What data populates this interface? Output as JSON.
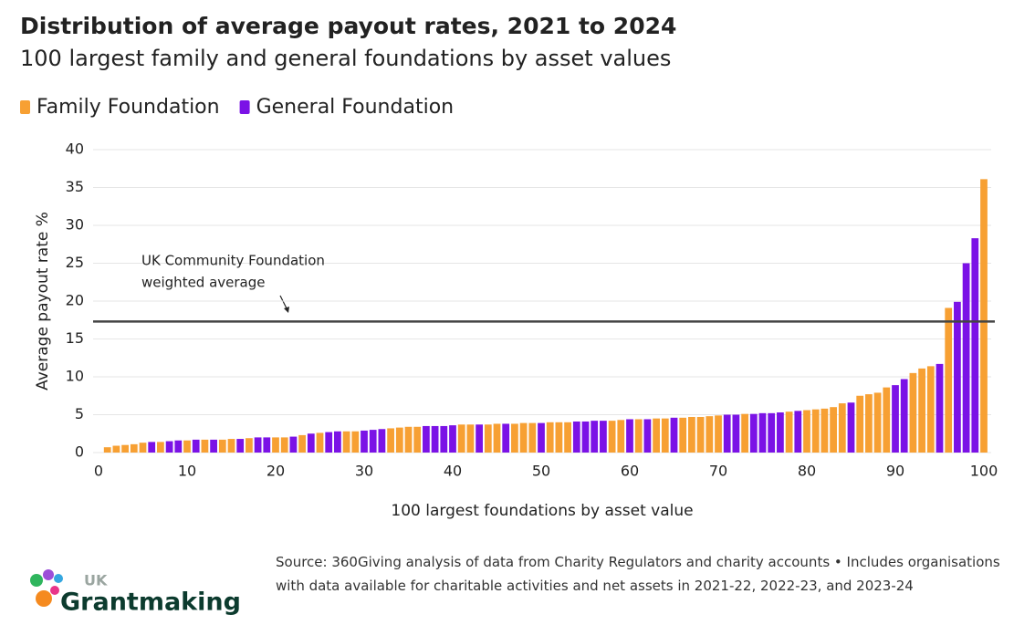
{
  "chart_data": {
    "type": "bar",
    "title": "Distribution of average payout rates, 2021 to 2024",
    "subtitle": "100 largest family and general foundations by asset values",
    "x_label": "100 largest foundations by asset value",
    "y_label": "Average payout rate %",
    "x": [
      1,
      2,
      3,
      4,
      5,
      6,
      7,
      8,
      9,
      10,
      11,
      12,
      13,
      14,
      15,
      16,
      17,
      18,
      19,
      20,
      21,
      22,
      23,
      24,
      25,
      26,
      27,
      28,
      29,
      30,
      31,
      32,
      33,
      34,
      35,
      36,
      37,
      38,
      39,
      40,
      41,
      42,
      43,
      44,
      45,
      46,
      47,
      48,
      49,
      50,
      51,
      52,
      53,
      54,
      55,
      56,
      57,
      58,
      59,
      60,
      61,
      62,
      63,
      64,
      65,
      66,
      67,
      68,
      69,
      70,
      71,
      72,
      73,
      74,
      75,
      76,
      77,
      78,
      79,
      80,
      81,
      82,
      83,
      84,
      85,
      86,
      87,
      88,
      89,
      90,
      91,
      92,
      93,
      94,
      95,
      96,
      97,
      98,
      99,
      100
    ],
    "series": [
      {
        "name": "Family Foundation",
        "color": "#f7a033",
        "values": [
          0.7,
          0.9,
          1.0,
          1.1,
          1.3,
          null,
          1.4,
          null,
          null,
          1.6,
          null,
          1.7,
          null,
          1.7,
          1.8,
          null,
          1.9,
          null,
          null,
          2.0,
          2.0,
          null,
          2.3,
          null,
          2.6,
          null,
          null,
          2.8,
          2.8,
          null,
          null,
          null,
          3.2,
          3.3,
          3.4,
          3.4,
          null,
          null,
          null,
          null,
          3.7,
          3.7,
          null,
          3.7,
          3.8,
          null,
          3.8,
          3.9,
          3.9,
          null,
          4.0,
          4.0,
          4.0,
          null,
          null,
          null,
          null,
          4.2,
          4.3,
          null,
          4.4,
          null,
          4.5,
          4.5,
          null,
          4.6,
          4.7,
          4.7,
          4.8,
          4.9,
          null,
          null,
          5.1,
          null,
          null,
          null,
          null,
          5.4,
          null,
          5.6,
          5.7,
          5.8,
          6.0,
          6.5,
          null,
          7.5,
          7.7,
          7.9,
          8.6,
          null,
          null,
          10.5,
          11.1,
          11.4,
          null,
          19.1,
          null,
          null,
          null,
          36.1
        ]
      },
      {
        "name": "General Foundation",
        "color": "#7b12e6",
        "values": [
          null,
          null,
          null,
          null,
          null,
          1.4,
          null,
          1.5,
          1.6,
          null,
          1.7,
          null,
          1.7,
          null,
          null,
          1.8,
          null,
          2.0,
          2.0,
          null,
          null,
          2.1,
          null,
          2.5,
          null,
          2.7,
          2.8,
          null,
          null,
          2.9,
          3.0,
          3.1,
          null,
          null,
          null,
          null,
          3.5,
          3.5,
          3.5,
          3.6,
          null,
          null,
          3.7,
          null,
          null,
          3.8,
          null,
          null,
          null,
          3.9,
          null,
          null,
          null,
          4.1,
          4.1,
          4.2,
          4.2,
          null,
          null,
          4.4,
          null,
          4.4,
          null,
          null,
          4.6,
          null,
          null,
          null,
          null,
          null,
          5.0,
          5.0,
          null,
          5.1,
          5.2,
          5.2,
          5.3,
          null,
          5.5,
          null,
          null,
          null,
          null,
          null,
          6.6,
          null,
          null,
          null,
          null,
          8.9,
          9.7,
          null,
          null,
          null,
          11.7,
          null,
          19.9,
          25.0,
          28.3,
          null
        ]
      }
    ],
    "xlim": [
      0,
      100
    ],
    "xticks": [
      0,
      10,
      20,
      30,
      40,
      50,
      60,
      70,
      80,
      90,
      100
    ],
    "ylim": [
      0,
      40
    ],
    "yticks": [
      0,
      5,
      10,
      15,
      20,
      25,
      30,
      35,
      40
    ],
    "grid": true,
    "reference_line": {
      "value": 17.3,
      "color": "#444444",
      "label": [
        "UK Community Foundation",
        "weighted average"
      ]
    },
    "source": "Source: 360Giving analysis of data from Charity Regulators and charity accounts • Includes organisations with data available for charitable activities and net assets in 2021-22, 2022-23, and 2023-24",
    "logo": {
      "small": "UK",
      "main": "Grantmaking"
    }
  }
}
